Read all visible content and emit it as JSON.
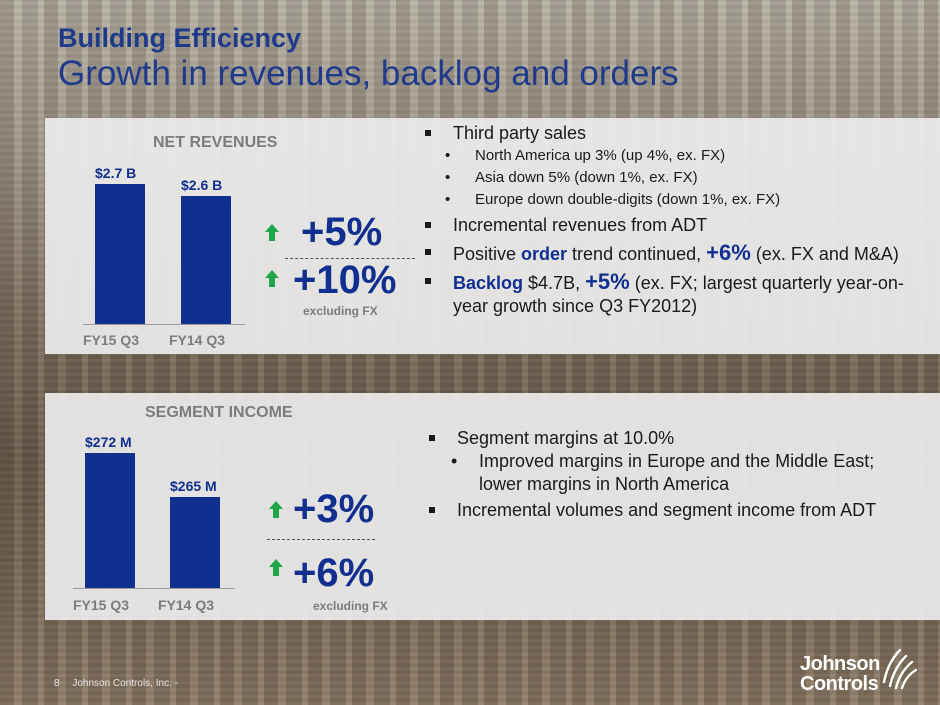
{
  "slide": {
    "title_line1": "Building Efficiency",
    "title_line2": "Growth in revenues, backlog and orders",
    "page_number": "8",
    "footer_text": "Johnson Controls, Inc. -",
    "logo_line1": "Johnson",
    "logo_line2": "Controls"
  },
  "colors": {
    "bar": "#102f8f",
    "arrow": "#1fa64b",
    "title": "#1f3a8a"
  },
  "chart_data": [
    {
      "type": "bar",
      "title": "NET REVENUES",
      "categories": [
        "FY15 Q3",
        "FY14 Q3"
      ],
      "values": [
        2.7,
        2.6
      ],
      "value_labels": [
        "$2.7 B",
        "$2.6 B"
      ],
      "unit": "B",
      "ylim": [
        1.55,
        2.7
      ],
      "grid": false,
      "growth": "+5%",
      "growth_ex_fx": "+10%",
      "growth_ex_fx_label": "excluding FX"
    },
    {
      "type": "bar",
      "title": "SEGMENT INCOME",
      "categories": [
        "FY15 Q3",
        "FY14 Q3"
      ],
      "values": [
        272,
        265
      ],
      "value_labels": [
        "$272 M",
        "$265 M"
      ],
      "unit": "M",
      "ylim": [
        250.3,
        272
      ],
      "grid": false,
      "growth": "+3%",
      "growth_ex_fx": "+6%",
      "growth_ex_fx_label": "excluding FX"
    }
  ],
  "top_bullets": {
    "b1": "Third party sales",
    "b1_sub": [
      "North America up 3% (up 4%, ex. FX)",
      "Asia down 5% (down 1%, ex. FX)",
      "Europe down double-digits (down 1%, ex. FX)"
    ],
    "b2": "Incremental revenues from ADT",
    "b3_pre": "Positive ",
    "b3_hl": "order",
    "b3_mid": " trend continued, ",
    "b3_pct": "+6%",
    "b3_post": " (ex. FX and M&A)",
    "b4_hl": "Backlog",
    "b4_mid": " $4.7B, ",
    "b4_pct": "+5%",
    "b4_post": " (ex. FX; largest quarterly year-on-year growth since Q3 FY2012)"
  },
  "bottom_bullets": {
    "b1": "Segment margins at 10.0%",
    "b1_sub": "Improved margins in Europe and the Middle East; lower margins in North America",
    "b2": "Incremental volumes and segment income from ADT"
  }
}
